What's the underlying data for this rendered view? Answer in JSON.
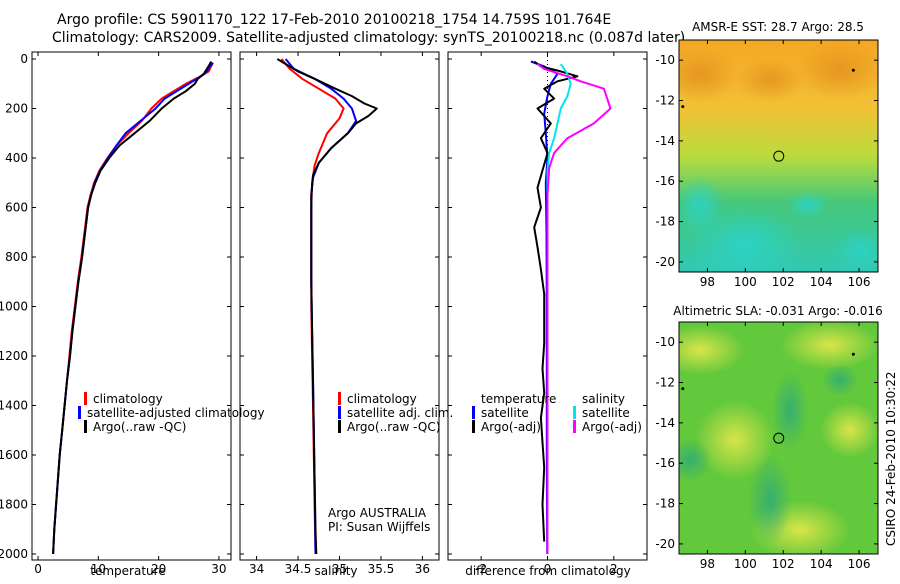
{
  "header": {
    "line1": "Argo profile: CS 5901170_122 17-Feb-2010 20100218_1754 14.759S 101.764E",
    "line2": "Climatology: CARS2009. Satellite-adjusted climatology: synTS_20100218.nc (0.087d later)"
  },
  "footer": {
    "stamp": "CSIRO 24-Feb-2010 10:30:22"
  },
  "colors": {
    "climatology": "#ff0000",
    "satellite": "#0000ff",
    "argo": "#000000",
    "sat_salt": "#00e5ee",
    "argo_salt": "#ff00ff"
  },
  "chart_data": [
    {
      "type": "line",
      "name": "temperature-profile",
      "xlabel": "temperature",
      "xlim": [
        -1,
        32
      ],
      "xticks": [
        0,
        10,
        20,
        30
      ],
      "ylim": [
        2000,
        0
      ],
      "yticks": [
        0,
        200,
        400,
        600,
        800,
        1000,
        1200,
        1400,
        1600,
        1800,
        2000
      ],
      "legend": {
        "placement": "lower-right",
        "entries": [
          "climatology",
          "satellite-adjusted climatology",
          "Argo(..raw -QC)"
        ]
      },
      "series": [
        {
          "name": "climatology",
          "color": "#ff0000",
          "points": [
            [
              29,
              15
            ],
            [
              28.7,
              30
            ],
            [
              28.3,
              50
            ],
            [
              27,
              70
            ],
            [
              24.5,
              100
            ],
            [
              22.5,
              130
            ],
            [
              20.5,
              160
            ],
            [
              18.8,
              200
            ],
            [
              17.2,
              250
            ],
            [
              15,
              300
            ],
            [
              13,
              350
            ],
            [
              11.5,
              400
            ],
            [
              10.2,
              450
            ],
            [
              9.3,
              500
            ],
            [
              8.7,
              550
            ],
            [
              8.2,
              600
            ],
            [
              7.7,
              700
            ],
            [
              7.2,
              800
            ],
            [
              6.6,
              900
            ],
            [
              6.1,
              1000
            ],
            [
              5.6,
              1100
            ],
            [
              5.2,
              1200
            ],
            [
              4.8,
              1300
            ],
            [
              4.4,
              1400
            ],
            [
              4,
              1500
            ],
            [
              3.6,
              1600
            ],
            [
              3.3,
              1700
            ],
            [
              3,
              1800
            ],
            [
              2.7,
              1900
            ],
            [
              2.5,
              2000
            ]
          ]
        },
        {
          "name": "satellite-adjusted climatology",
          "color": "#0000ff",
          "points": [
            [
              29,
              15
            ],
            [
              28.5,
              30
            ],
            [
              28,
              50
            ],
            [
              27,
              70
            ],
            [
              25,
              100
            ],
            [
              23,
              130
            ],
            [
              21,
              160
            ],
            [
              19.5,
              200
            ],
            [
              17,
              250
            ],
            [
              14.5,
              300
            ],
            [
              13,
              350
            ],
            [
              11.6,
              400
            ],
            [
              10.3,
              450
            ],
            [
              9.4,
              500
            ],
            [
              8.8,
              550
            ],
            [
              8.3,
              600
            ],
            [
              7.8,
              700
            ],
            [
              7.3,
              800
            ],
            [
              6.7,
              900
            ],
            [
              6.2,
              1000
            ],
            [
              5.7,
              1100
            ],
            [
              5.3,
              1200
            ],
            [
              4.8,
              1300
            ],
            [
              4.4,
              1400
            ],
            [
              4,
              1500
            ],
            [
              3.6,
              1600
            ],
            [
              3.3,
              1700
            ],
            [
              3,
              1800
            ],
            [
              2.7,
              1900
            ],
            [
              2.5,
              2000
            ]
          ]
        },
        {
          "name": "Argo(..raw -QC)",
          "color": "#000000",
          "points": [
            [
              28.7,
              10
            ],
            [
              28.5,
              20
            ],
            [
              28,
              40
            ],
            [
              27.5,
              60
            ],
            [
              26.5,
              80
            ],
            [
              26,
              100
            ],
            [
              24.5,
              130
            ],
            [
              22.5,
              160
            ],
            [
              20.5,
              200
            ],
            [
              18.5,
              250
            ],
            [
              16,
              300
            ],
            [
              13.5,
              350
            ],
            [
              11.8,
              400
            ],
            [
              10.4,
              450
            ],
            [
              9.5,
              500
            ],
            [
              8.8,
              550
            ],
            [
              8.3,
              600
            ],
            [
              7.8,
              700
            ],
            [
              7.3,
              800
            ],
            [
              6.7,
              900
            ],
            [
              6.2,
              1000
            ],
            [
              5.7,
              1100
            ],
            [
              5.3,
              1200
            ],
            [
              4.8,
              1300
            ],
            [
              4.4,
              1400
            ],
            [
              4,
              1500
            ],
            [
              3.6,
              1600
            ],
            [
              3.3,
              1700
            ],
            [
              3,
              1800
            ],
            [
              2.7,
              1900
            ],
            [
              2.5,
              2000
            ]
          ]
        }
      ]
    },
    {
      "type": "line",
      "name": "salinity-profile",
      "xlabel": "salinity",
      "xlim": [
        33.8,
        36.2
      ],
      "xticks": [
        34,
        34.5,
        35,
        35.5,
        36
      ],
      "ylim": [
        2000,
        0
      ],
      "legend": {
        "placement": "lower-right",
        "entries": [
          "climatology",
          "satellite adj. clim.",
          "Argo(..raw -QC)"
        ]
      },
      "annotation": [
        "Argo AUSTRALIA",
        "PI: Susan Wijffels"
      ],
      "series": [
        {
          "name": "climatology",
          "color": "#ff0000",
          "points": [
            [
              34.3,
              0
            ],
            [
              34.4,
              40
            ],
            [
              34.55,
              80
            ],
            [
              34.75,
              120
            ],
            [
              34.95,
              160
            ],
            [
              35.05,
              200
            ],
            [
              35,
              240
            ],
            [
              34.85,
              300
            ],
            [
              34.75,
              380
            ],
            [
              34.7,
              430
            ],
            [
              34.67,
              500
            ],
            [
              34.66,
              600
            ],
            [
              34.66,
              800
            ],
            [
              34.66,
              1000
            ],
            [
              34.67,
              1200
            ],
            [
              34.68,
              1400
            ],
            [
              34.69,
              1600
            ],
            [
              34.7,
              1800
            ],
            [
              34.71,
              2000
            ]
          ]
        },
        {
          "name": "satellite adj. clim.",
          "color": "#0000ff",
          "points": [
            [
              34.35,
              0
            ],
            [
              34.45,
              40
            ],
            [
              34.7,
              80
            ],
            [
              34.9,
              120
            ],
            [
              35.05,
              160
            ],
            [
              35.15,
              200
            ],
            [
              35.2,
              250
            ],
            [
              35.1,
              300
            ],
            [
              34.9,
              360
            ],
            [
              34.75,
              420
            ],
            [
              34.68,
              480
            ],
            [
              34.66,
              550
            ],
            [
              34.66,
              700
            ],
            [
              34.66,
              900
            ],
            [
              34.67,
              1100
            ],
            [
              34.68,
              1300
            ],
            [
              34.69,
              1500
            ],
            [
              34.7,
              1700
            ],
            [
              34.71,
              2000
            ]
          ]
        },
        {
          "name": "Argo(..raw -QC)",
          "color": "#000000",
          "points": [
            [
              34.25,
              0
            ],
            [
              34.35,
              20
            ],
            [
              34.5,
              50
            ],
            [
              34.7,
              80
            ],
            [
              34.95,
              120
            ],
            [
              35.15,
              150
            ],
            [
              35.3,
              180
            ],
            [
              35.45,
              200
            ],
            [
              35.35,
              230
            ],
            [
              35.2,
              260
            ],
            [
              35.1,
              300
            ],
            [
              34.9,
              360
            ],
            [
              34.75,
              420
            ],
            [
              34.68,
              470
            ],
            [
              34.66,
              550
            ],
            [
              34.66,
              700
            ],
            [
              34.66,
              900
            ],
            [
              34.67,
              1100
            ],
            [
              34.68,
              1300
            ],
            [
              34.69,
              1500
            ],
            [
              34.7,
              1700
            ],
            [
              34.71,
              1900
            ],
            [
              34.72,
              2000
            ]
          ]
        }
      ]
    },
    {
      "type": "line",
      "name": "difference-profile",
      "xlabel": "difference from climatology",
      "xlim": [
        -3,
        3
      ],
      "xticks": [
        -2,
        0,
        2
      ],
      "ylim": [
        2000,
        0
      ],
      "legend": {
        "placement": "lower-right",
        "temperature_header": "temperature",
        "salinity_header": "salinity",
        "entries": [
          "satellite",
          "Argo(-adj)",
          "satellite",
          "Argo(-adj)"
        ]
      },
      "series": [
        {
          "name": "temperature satellite",
          "color": "#0000ff",
          "points": [
            [
              -0.5,
              10
            ],
            [
              -0.1,
              30
            ],
            [
              0.3,
              60
            ],
            [
              0.1,
              100
            ],
            [
              0,
              150
            ],
            [
              -0.1,
              220
            ],
            [
              -0.05,
              300
            ],
            [
              0,
              400
            ],
            [
              -0.05,
              500
            ],
            [
              -0.03,
              700
            ],
            [
              -0.02,
              1000
            ],
            [
              -0.02,
              1300
            ],
            [
              -0.02,
              1600
            ],
            [
              -0.01,
              2000
            ]
          ]
        },
        {
          "name": "temperature Argo(-adj)",
          "color": "#000000",
          "points": [
            [
              -0.4,
              10
            ],
            [
              -0.2,
              30
            ],
            [
              0.4,
              50
            ],
            [
              0.9,
              70
            ],
            [
              0.3,
              90
            ],
            [
              -0.1,
              120
            ],
            [
              0.2,
              160
            ],
            [
              -0.3,
              200
            ],
            [
              0.1,
              260
            ],
            [
              -0.2,
              320
            ],
            [
              0,
              380
            ],
            [
              -0.15,
              450
            ],
            [
              -0.3,
              520
            ],
            [
              -0.2,
              600
            ],
            [
              -0.4,
              680
            ],
            [
              -0.3,
              760
            ],
            [
              -0.2,
              850
            ],
            [
              -0.1,
              950
            ],
            [
              -0.1,
              1050
            ],
            [
              -0.1,
              1150
            ],
            [
              -0.15,
              1250
            ],
            [
              -0.1,
              1350
            ],
            [
              -0.2,
              1450
            ],
            [
              -0.15,
              1550
            ],
            [
              -0.1,
              1650
            ],
            [
              -0.15,
              1800
            ],
            [
              -0.1,
              1950
            ]
          ]
        },
        {
          "name": "salinity satellite",
          "color": "#00e5ee",
          "points": [
            [
              0.4,
              20
            ],
            [
              0.6,
              60
            ],
            [
              0.7,
              100
            ],
            [
              0.6,
              150
            ],
            [
              0.4,
              200
            ],
            [
              0.3,
              260
            ],
            [
              0.2,
              320
            ],
            [
              0.05,
              380
            ],
            [
              0,
              450
            ],
            [
              0,
              600
            ],
            [
              0,
              800
            ],
            [
              0,
              1000
            ],
            [
              0,
              1200
            ],
            [
              0,
              1400
            ],
            [
              0,
              1600
            ],
            [
              0,
              1800
            ],
            [
              0,
              2000
            ]
          ]
        },
        {
          "name": "salinity Argo(-adj)",
          "color": "#ff00ff",
          "points": [
            [
              -0.3,
              20
            ],
            [
              -0.1,
              40
            ],
            [
              0.6,
              70
            ],
            [
              1,
              90
            ],
            [
              1.7,
              120
            ],
            [
              1.9,
              200
            ],
            [
              1.4,
              260
            ],
            [
              0.6,
              320
            ],
            [
              0.2,
              380
            ],
            [
              0.05,
              440
            ],
            [
              0,
              550
            ],
            [
              0,
              800
            ],
            [
              0,
              1200
            ],
            [
              0,
              1600
            ],
            [
              0,
              2000
            ]
          ]
        }
      ]
    },
    {
      "type": "heatmap",
      "name": "sst-map",
      "title": "AMSR-E SST: 28.7 Argo: 28.5",
      "xlim": [
        96.5,
        107
      ],
      "xticks": [
        98,
        100,
        102,
        104,
        106
      ],
      "ylim": [
        -20.5,
        -9
      ],
      "yticks": [
        -10,
        -12,
        -14,
        -16,
        -18,
        -20
      ],
      "marker": {
        "lon": 101.764,
        "lat": -14.759
      },
      "dots": [
        [
          105.7,
          -10.5
        ],
        [
          96.7,
          -12.3
        ]
      ]
    },
    {
      "type": "heatmap",
      "name": "sla-map",
      "title": "Altimetric SLA: -0.031 Argo: -0.016",
      "xlim": [
        96.5,
        107
      ],
      "xticks": [
        98,
        100,
        102,
        104,
        106
      ],
      "ylim": [
        -20.5,
        -9
      ],
      "yticks": [
        -10,
        -12,
        -14,
        -16,
        -18,
        -20
      ],
      "marker": {
        "lon": 101.764,
        "lat": -14.759
      },
      "dots": [
        [
          105.7,
          -10.6
        ],
        [
          96.7,
          -12.3
        ]
      ]
    }
  ]
}
